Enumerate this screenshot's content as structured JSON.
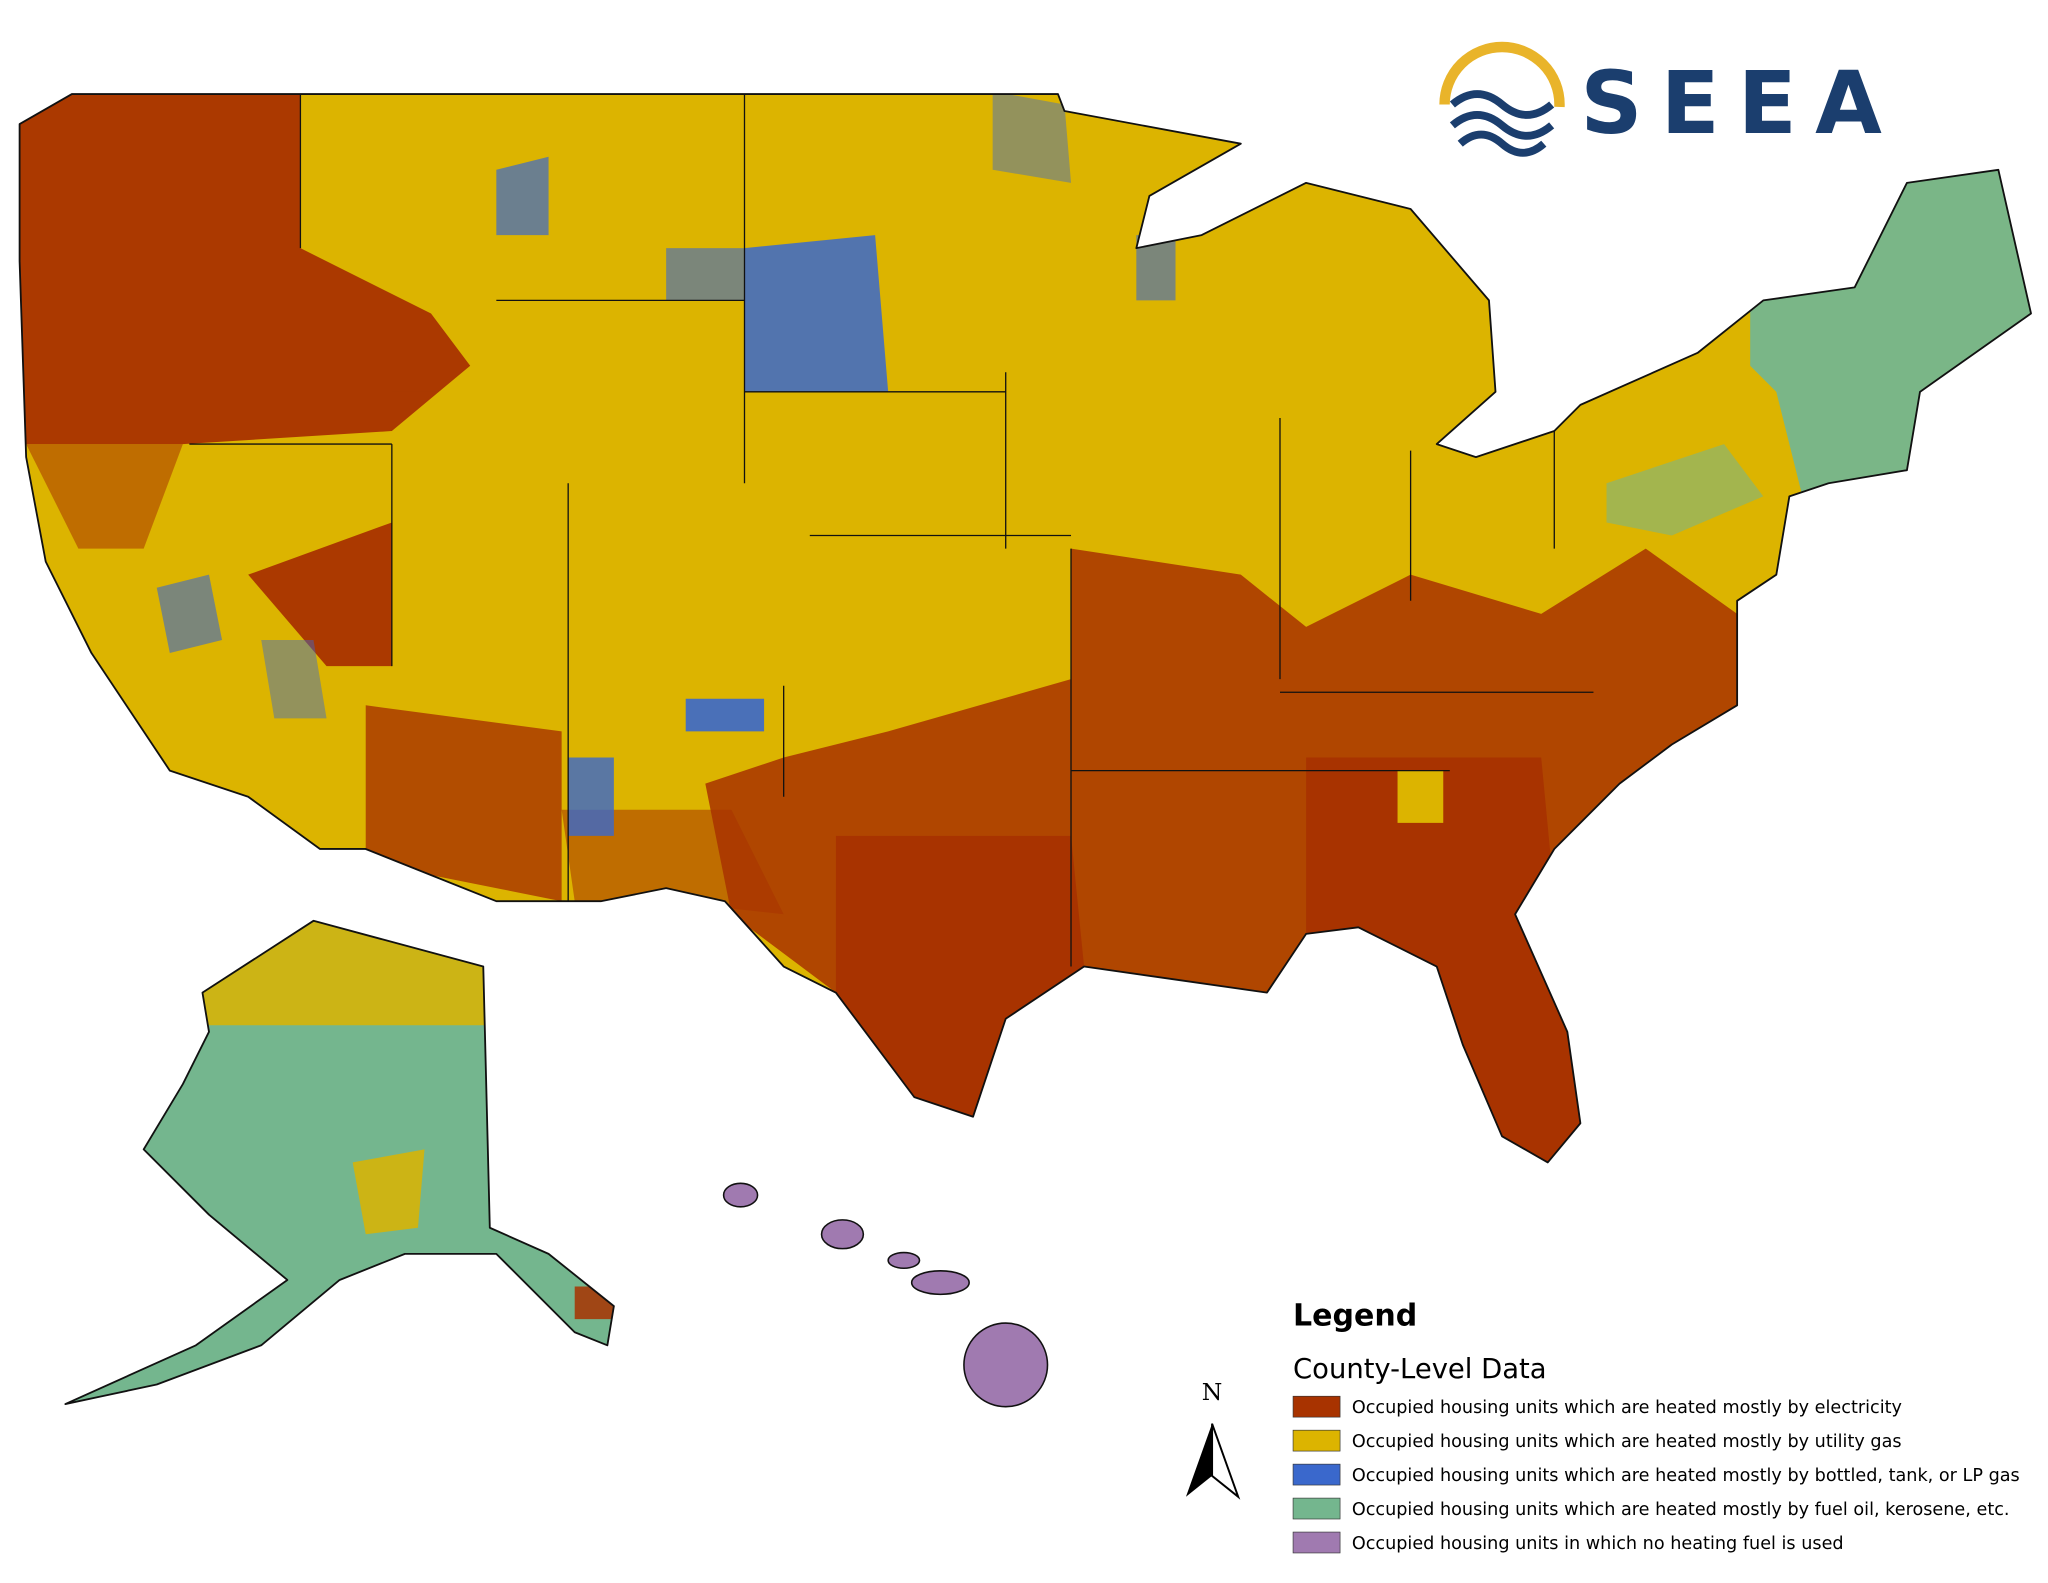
{
  "logo": {
    "text": "SEEA"
  },
  "legend": {
    "title": "Legend",
    "subtitle": "County-Level Data",
    "items": [
      {
        "label": "Occupied housing units which are heated mostly by electricity",
        "color": "#a83300"
      },
      {
        "label": "Occupied housing units which are heated mostly by utility gas",
        "color": "#dcb400"
      },
      {
        "label": "Occupied housing units which are heated mostly by bottled, tank, or LP gas",
        "color": "#3a68cc"
      },
      {
        "label": "Occupied housing units which are heated mostly by fuel oil, kerosene, etc.",
        "color": "#74b68e"
      },
      {
        "label": "Occupied housing units in which no heating fuel is used",
        "color": "#a07ab0"
      }
    ]
  },
  "north_arrow": {
    "label": "N"
  }
}
